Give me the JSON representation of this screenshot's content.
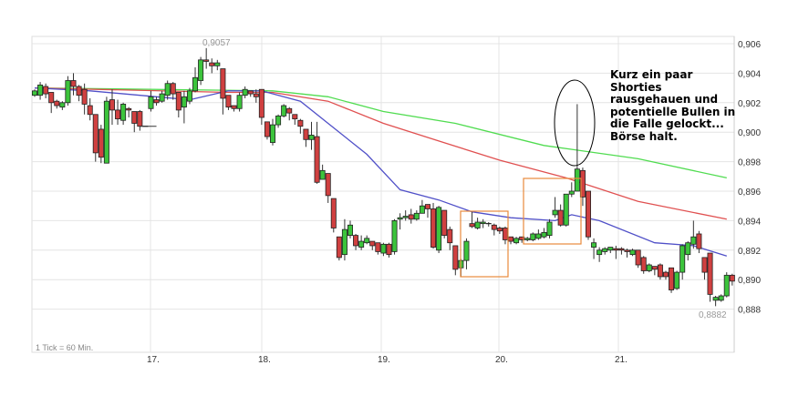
{
  "chart_data": {
    "type": "candlestick",
    "title": "",
    "interval_note": "1 Tick = 60 Min.",
    "x_tick_labels": [
      "17.",
      "18.",
      "19.",
      "20.",
      "21."
    ],
    "x_tick_candle_index": [
      21,
      41,
      63,
      84,
      105
    ],
    "ylim": [
      0.8865,
      0.9065
    ],
    "y_ticks": [
      0.888,
      0.89,
      0.892,
      0.894,
      0.896,
      0.898,
      0.9,
      0.902,
      0.904,
      0.906
    ],
    "y_tick_labels": [
      "0,888",
      "0,890",
      "0,892",
      "0,894",
      "0,896",
      "0,898",
      "0,900",
      "0,902",
      "0,904",
      "0,906"
    ],
    "grid": true,
    "high_label": "0,9057",
    "low_label": "0,8882",
    "colors": {
      "up": "#3cc43c",
      "down": "#d04040",
      "ma_short": "#5050c8",
      "ma_mid": "#e05050",
      "ma_long": "#50dc50",
      "box": "#e88a3c"
    },
    "ohlc": [
      [
        0.9025,
        0.9029,
        0.9024,
        0.9028
      ],
      [
        0.9025,
        0.9034,
        0.9022,
        0.9032
      ],
      [
        0.9031,
        0.9033,
        0.9023,
        0.9026
      ],
      [
        0.9027,
        0.9027,
        0.9013,
        0.902
      ],
      [
        0.9021,
        0.9022,
        0.9016,
        0.9018
      ],
      [
        0.9017,
        0.9021,
        0.9015,
        0.902
      ],
      [
        0.902,
        0.9038,
        0.9018,
        0.9035
      ],
      [
        0.9035,
        0.904,
        0.9025,
        0.9031
      ],
      [
        0.9031,
        0.9032,
        0.9021,
        0.9025
      ],
      [
        0.9029,
        0.9033,
        0.9012,
        0.9019
      ],
      [
        0.9018,
        0.9023,
        0.9008,
        0.9012
      ],
      [
        0.9012,
        0.9012,
        0.898,
        0.8986
      ],
      [
        0.9002,
        0.9005,
        0.8979,
        0.8983
      ],
      [
        0.8979,
        0.9024,
        0.8979,
        0.9021
      ],
      [
        0.9022,
        0.9029,
        0.9005,
        0.9015
      ],
      [
        0.9015,
        0.9022,
        0.9005,
        0.9009
      ],
      [
        0.9008,
        0.902,
        0.9005,
        0.9019
      ],
      [
        0.9016,
        0.9017,
        0.901,
        0.9015
      ],
      [
        0.9014,
        0.9014,
        0.9,
        0.9006
      ],
      [
        0.9014,
        0.9015,
        0.9001,
        0.9004
      ],
      [
        0.9004,
        0.9004,
        0.9004,
        0.9004
      ],
      [
        0.9016,
        0.9028,
        0.9014,
        0.9024
      ],
      [
        0.9022,
        0.9024,
        0.9018,
        0.902
      ],
      [
        0.9021,
        0.9028,
        0.902,
        0.9026
      ],
      [
        0.9025,
        0.9035,
        0.9022,
        0.9033
      ],
      [
        0.9033,
        0.9034,
        0.9022,
        0.9026
      ],
      [
        0.9027,
        0.9027,
        0.901,
        0.9015
      ],
      [
        0.9017,
        0.9028,
        0.9006,
        0.9024
      ],
      [
        0.9021,
        0.903,
        0.9019,
        0.9028
      ],
      [
        0.9028,
        0.9044,
        0.9027,
        0.9037
      ],
      [
        0.9035,
        0.9051,
        0.9032,
        0.9049
      ],
      [
        0.9049,
        0.9057,
        0.9043,
        0.9048
      ],
      [
        0.9047,
        0.905,
        0.904,
        0.9045
      ],
      [
        0.9045,
        0.9049,
        0.9042,
        0.9047
      ],
      [
        0.9043,
        0.9043,
        0.9012,
        0.9023
      ],
      [
        0.9025,
        0.9025,
        0.9015,
        0.9017
      ],
      [
        0.9018,
        0.9018,
        0.9014,
        0.9016
      ],
      [
        0.9016,
        0.9027,
        0.9014,
        0.9025
      ],
      [
        0.9025,
        0.9031,
        0.9023,
        0.9029
      ],
      [
        0.9028,
        0.9028,
        0.9024,
        0.9026
      ],
      [
        0.9026,
        0.9029,
        0.902,
        0.9024
      ],
      [
        0.9029,
        0.9029,
        0.9005,
        0.901
      ],
      [
        0.9007,
        0.9007,
        0.8995,
        0.8997
      ],
      [
        0.8993,
        0.9009,
        0.8991,
        0.9005
      ],
      [
        0.9005,
        0.9012,
        0.9003,
        0.9011
      ],
      [
        0.9011,
        0.9019,
        0.901,
        0.9018
      ],
      [
        0.9016,
        0.9017,
        0.9008,
        0.9013
      ],
      [
        0.9012,
        0.9012,
        0.9005,
        0.9009
      ],
      [
        0.9008,
        0.9009,
        0.8999,
        0.9004
      ],
      [
        0.9002,
        0.9002,
        0.899,
        0.8995
      ],
      [
        0.8995,
        0.9007,
        0.8988,
        0.8998
      ],
      [
        0.8997,
        0.9007,
        0.8965,
        0.8966
      ],
      [
        0.8968,
        0.8978,
        0.8968,
        0.8974
      ],
      [
        0.8972,
        0.8972,
        0.8952,
        0.8957
      ],
      [
        0.8955,
        0.8955,
        0.8932,
        0.8935
      ],
      [
        0.8929,
        0.8929,
        0.8913,
        0.8915
      ],
      [
        0.8917,
        0.8941,
        0.8913,
        0.8934
      ],
      [
        0.893,
        0.894,
        0.8928,
        0.8937
      ],
      [
        0.893,
        0.8931,
        0.892,
        0.8923
      ],
      [
        0.8922,
        0.893,
        0.892,
        0.8926
      ],
      [
        0.8925,
        0.893,
        0.8924,
        0.8928
      ],
      [
        0.8926,
        0.8926,
        0.892,
        0.8923
      ],
      [
        0.8925,
        0.8925,
        0.8917,
        0.8919
      ],
      [
        0.8918,
        0.8925,
        0.8916,
        0.8924
      ],
      [
        0.8924,
        0.8925,
        0.8915,
        0.8917
      ],
      [
        0.8919,
        0.8941,
        0.8917,
        0.894
      ],
      [
        0.8941,
        0.8945,
        0.8934,
        0.8942
      ],
      [
        0.8942,
        0.8947,
        0.894,
        0.8943
      ],
      [
        0.8944,
        0.8948,
        0.8938,
        0.8941
      ],
      [
        0.8941,
        0.8947,
        0.894,
        0.8945
      ],
      [
        0.8945,
        0.8954,
        0.8945,
        0.895
      ],
      [
        0.8951,
        0.8951,
        0.8942,
        0.8948
      ],
      [
        0.8948,
        0.8952,
        0.8921,
        0.8922
      ],
      [
        0.892,
        0.895,
        0.8918,
        0.8949
      ],
      [
        0.8947,
        0.8947,
        0.8928,
        0.893
      ],
      [
        0.8934,
        0.8936,
        0.892,
        0.8925
      ],
      [
        0.8923,
        0.8923,
        0.8903,
        0.8907
      ],
      [
        0.8908,
        0.8914,
        0.8902,
        0.8913
      ],
      [
        0.8913,
        0.8928,
        0.8907,
        0.8926
      ],
      [
        0.8938,
        0.8946,
        0.8935,
        0.8936
      ],
      [
        0.8935,
        0.8942,
        0.8934,
        0.8939
      ],
      [
        0.8938,
        0.8941,
        0.8935,
        0.8939
      ],
      [
        0.8938,
        0.8939,
        0.8936,
        0.8938
      ],
      [
        0.8937,
        0.8938,
        0.893,
        0.8934
      ],
      [
        0.8935,
        0.8936,
        0.8931,
        0.8933
      ],
      [
        0.8935,
        0.8936,
        0.8924,
        0.8927
      ],
      [
        0.8929,
        0.8929,
        0.8924,
        0.8926
      ],
      [
        0.8925,
        0.8929,
        0.8924,
        0.8928
      ],
      [
        0.8929,
        0.8929,
        0.8925,
        0.8927
      ],
      [
        0.8927,
        0.8929,
        0.8926,
        0.8928
      ],
      [
        0.8927,
        0.8932,
        0.8926,
        0.8931
      ],
      [
        0.8928,
        0.8934,
        0.8927,
        0.8931
      ],
      [
        0.8929,
        0.8935,
        0.8928,
        0.8932
      ],
      [
        0.893,
        0.8941,
        0.8928,
        0.8939
      ],
      [
        0.8944,
        0.8956,
        0.8942,
        0.8947
      ],
      [
        0.8947,
        0.8951,
        0.8936,
        0.8937
      ],
      [
        0.8937,
        0.8958,
        0.8936,
        0.8958
      ],
      [
        0.8958,
        0.8966,
        0.8956,
        0.896
      ],
      [
        0.896,
        0.9019,
        0.896,
        0.8975
      ],
      [
        0.8974,
        0.8976,
        0.895,
        0.8956
      ],
      [
        0.896,
        0.896,
        0.8927,
        0.8929
      ],
      [
        0.8922,
        0.8928,
        0.8914,
        0.8925
      ],
      [
        0.8917,
        0.8922,
        0.8912,
        0.892
      ],
      [
        0.8919,
        0.8922,
        0.8917,
        0.8921
      ],
      [
        0.892,
        0.8922,
        0.8918,
        0.8922
      ],
      [
        0.8921,
        0.8923,
        0.8914,
        0.892
      ],
      [
        0.8921,
        0.8922,
        0.8917,
        0.892
      ],
      [
        0.892,
        0.8921,
        0.8915,
        0.8919
      ],
      [
        0.8917,
        0.8921,
        0.8916,
        0.892
      ],
      [
        0.892,
        0.892,
        0.8908,
        0.891
      ],
      [
        0.8915,
        0.8916,
        0.8904,
        0.8906
      ],
      [
        0.8906,
        0.8911,
        0.8905,
        0.891
      ],
      [
        0.8909,
        0.8909,
        0.8903,
        0.8907
      ],
      [
        0.891,
        0.8911,
        0.89,
        0.8902
      ],
      [
        0.8905,
        0.8906,
        0.89,
        0.8902
      ],
      [
        0.8908,
        0.8908,
        0.8891,
        0.8893
      ],
      [
        0.8894,
        0.8906,
        0.8893,
        0.8905
      ],
      [
        0.8905,
        0.8924,
        0.89,
        0.8923
      ],
      [
        0.8917,
        0.8926,
        0.8913,
        0.8925
      ],
      [
        0.8924,
        0.894,
        0.8921,
        0.8929
      ],
      [
        0.8931,
        0.8933,
        0.8918,
        0.8921
      ],
      [
        0.8915,
        0.8915,
        0.89,
        0.8905
      ],
      [
        0.8918,
        0.8918,
        0.8885,
        0.889
      ],
      [
        0.8886,
        0.8889,
        0.8882,
        0.8888
      ],
      [
        0.8886,
        0.889,
        0.8885,
        0.8889
      ],
      [
        0.8889,
        0.8905,
        0.8888,
        0.8903
      ],
      [
        0.8903,
        0.8904,
        0.8896,
        0.8899
      ]
    ],
    "moving_averages": [
      {
        "color_key": "ma_long",
        "points": [
          [
            0,
            0.903
          ],
          [
            43,
            0.9028
          ],
          [
            53,
            0.9024
          ],
          [
            63,
            0.9014
          ],
          [
            76,
            0.9006
          ],
          [
            92,
            0.8991
          ],
          [
            109,
            0.8982
          ],
          [
            125,
            0.8969
          ]
        ]
      },
      {
        "color_key": "ma_mid",
        "points": [
          [
            0,
            0.903
          ],
          [
            35,
            0.9027
          ],
          [
            43,
            0.9027
          ],
          [
            53,
            0.9021
          ],
          [
            63,
            0.9006
          ],
          [
            73,
            0.8994
          ],
          [
            84,
            0.8981
          ],
          [
            96,
            0.8969
          ],
          [
            109,
            0.8953
          ],
          [
            125,
            0.8941
          ]
        ]
      },
      {
        "color_key": "ma_short",
        "points": [
          [
            0,
            0.903
          ],
          [
            10,
            0.9028
          ],
          [
            22,
            0.9024
          ],
          [
            28,
            0.9022
          ],
          [
            35,
            0.9028
          ],
          [
            41,
            0.9028
          ],
          [
            48,
            0.9021
          ],
          [
            53,
            0.9006
          ],
          [
            60,
            0.8985
          ],
          [
            66,
            0.8961
          ],
          [
            73,
            0.8954
          ],
          [
            79,
            0.8946
          ],
          [
            86,
            0.8942
          ],
          [
            94,
            0.894
          ],
          [
            97,
            0.8944
          ],
          [
            102,
            0.894
          ],
          [
            112,
            0.8925
          ],
          [
            119,
            0.8923
          ],
          [
            125,
            0.8916
          ]
        ]
      }
    ],
    "annotation_text": "Kurz ein paar\nShorties\nrausgehauen und\npotentielle Bullen in\ndie Falle gelockt...\nBörse halt."
  }
}
